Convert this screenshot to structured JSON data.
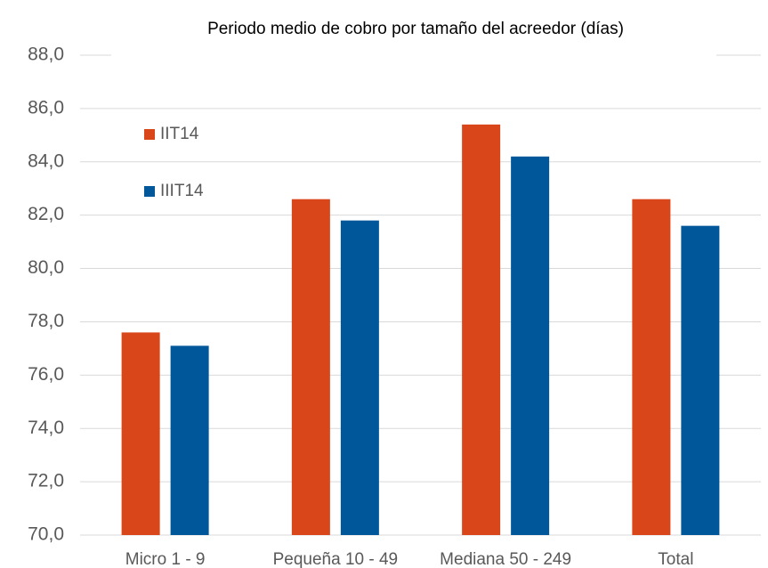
{
  "chart_data": {
    "type": "bar",
    "title": "Periodo medio de cobro por tamaño del acreedor (días)",
    "categories": [
      "Micro 1 - 9",
      "Pequeña 10 - 49",
      "Mediana 50 - 249",
      "Total"
    ],
    "series": [
      {
        "name": "IIT14",
        "color": "#d9461a",
        "values": [
          77.6,
          82.6,
          85.4,
          82.6
        ]
      },
      {
        "name": "IIIT14",
        "color": "#00589a",
        "values": [
          77.1,
          81.8,
          84.2,
          81.6
        ]
      }
    ],
    "ylim": [
      70,
      88
    ],
    "yticks": [
      {
        "value": 70,
        "label": "70,0"
      },
      {
        "value": 72,
        "label": "72,0"
      },
      {
        "value": 74,
        "label": "74,0"
      },
      {
        "value": 76,
        "label": "76,0"
      },
      {
        "value": 78,
        "label": "78,0"
      },
      {
        "value": 80,
        "label": "80,0"
      },
      {
        "value": 82,
        "label": "82,0"
      },
      {
        "value": 84,
        "label": "84,0"
      },
      {
        "value": 86,
        "label": "86,0"
      },
      {
        "value": 88,
        "label": "88,0"
      }
    ],
    "grid": true,
    "legend": "upper-left"
  }
}
